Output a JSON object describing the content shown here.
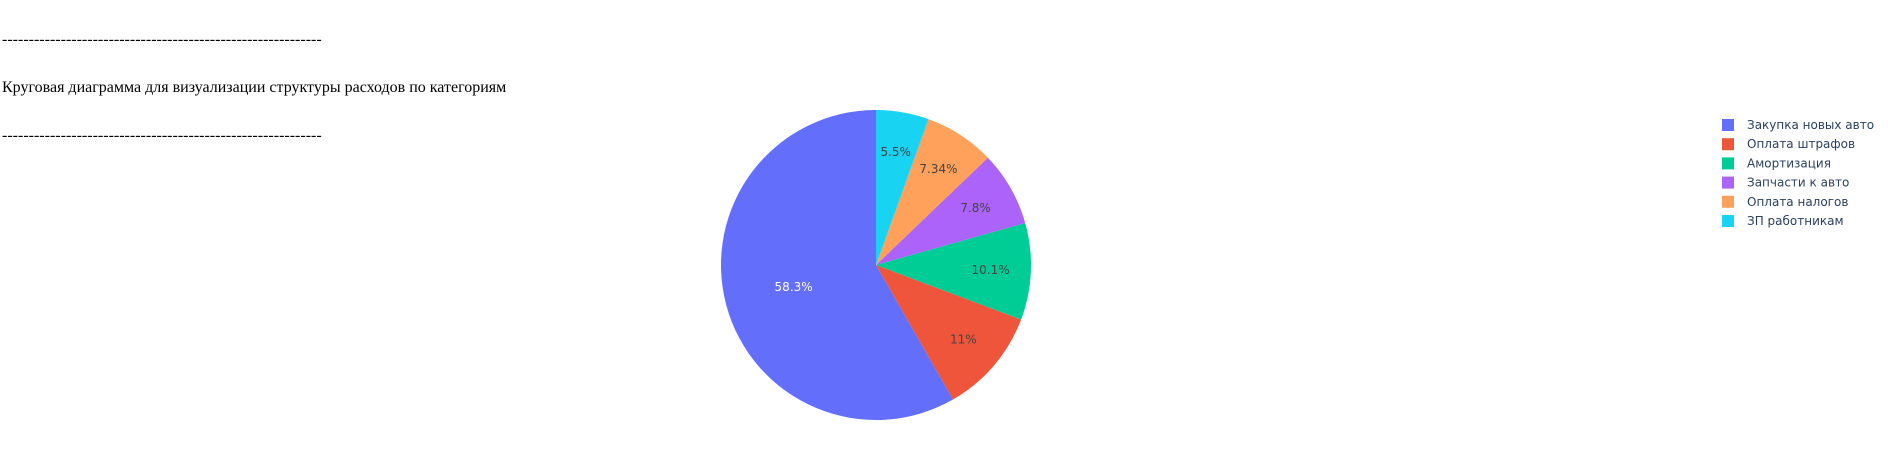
{
  "header": {
    "rule_top": "------------------------------------------------------------",
    "title": "Круговая диаграмма для визуализации структуры расходов по категориям",
    "rule_bottom": "------------------------------------------------------------"
  },
  "chart_data": {
    "type": "pie",
    "title": "",
    "labels": [
      "Закупка новых авто",
      "Оплата штрафов",
      "Амортизация",
      "Запчасти к авто",
      "Оплата налогов",
      "ЗП работникам"
    ],
    "values": [
      58.3,
      11,
      10.1,
      7.8,
      7.34,
      5.5
    ],
    "value_labels": [
      "58.3%",
      "11%",
      "10.1%",
      "7.8%",
      "7.34%",
      "5.5%"
    ],
    "colors": [
      "#636efa",
      "#ef553b",
      "#00cc96",
      "#ab63fa",
      "#ffa15a",
      "#19d3f3"
    ],
    "label_colors": [
      "#ffffff",
      "#444444",
      "#444444",
      "#444444",
      "#444444",
      "#444444"
    ],
    "direction": "counterclockwise",
    "start": "top",
    "legend_position": "right"
  }
}
